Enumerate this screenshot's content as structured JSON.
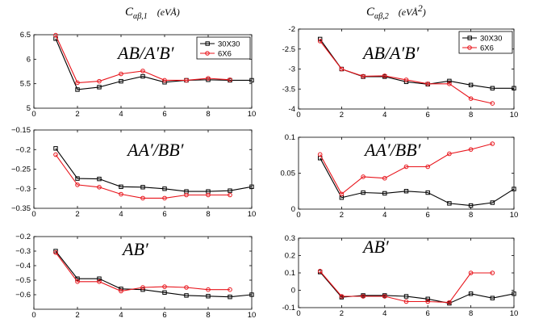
{
  "headers": {
    "left": "C",
    "left_sub": "αβ,1",
    "left_units": "(eVÅ)",
    "right": "C",
    "right_sub": "αβ,2",
    "right_units": "(eVÅ",
    "right_units_sup": "2",
    "right_units_close": ")"
  },
  "legend": {
    "entries": [
      "30X30",
      "6X6"
    ]
  },
  "colors": {
    "series_30x30": "#000000",
    "series_6x6": "#e8141b"
  },
  "chart_data": [
    {
      "id": "c1_abab",
      "type": "line",
      "annotation": "AB/A′B′",
      "xlim": [
        0,
        10
      ],
      "ylim": [
        5,
        6.5
      ],
      "xticks": [
        0,
        2,
        4,
        6,
        8,
        10
      ],
      "yticks": [
        5,
        5.5,
        6,
        6.5
      ],
      "ytick_labels": [
        "5",
        "5.5",
        "6",
        "6.5"
      ],
      "legend": true,
      "series": [
        {
          "name": "30X30",
          "x": [
            1,
            2,
            3,
            4,
            5,
            6,
            7,
            8,
            9,
            10
          ],
          "y": [
            6.42,
            5.38,
            5.43,
            5.55,
            5.65,
            5.53,
            5.57,
            5.58,
            5.57,
            5.57
          ]
        },
        {
          "name": "6X6",
          "x": [
            1,
            2,
            3,
            4,
            5,
            6,
            7,
            8,
            9
          ],
          "y": [
            6.49,
            5.52,
            5.55,
            5.7,
            5.76,
            5.57,
            5.57,
            5.61,
            5.58
          ]
        }
      ]
    },
    {
      "id": "c2_abab",
      "type": "line",
      "annotation": "AB/A′B′",
      "xlim": [
        0,
        10
      ],
      "ylim": [
        -4,
        -2
      ],
      "xticks": [
        0,
        2,
        4,
        6,
        8,
        10
      ],
      "yticks": [
        -4,
        -3.5,
        -3,
        -2.5,
        -2
      ],
      "ytick_labels": [
        "-4",
        "-3.5",
        "-3",
        "-2.5",
        "-2"
      ],
      "legend": true,
      "series": [
        {
          "name": "30X30",
          "x": [
            1,
            2,
            3,
            4,
            5,
            6,
            7,
            8,
            9,
            10
          ],
          "y": [
            -2.25,
            -3.0,
            -3.19,
            -3.19,
            -3.32,
            -3.38,
            -3.3,
            -3.4,
            -3.48,
            -3.48
          ]
        },
        {
          "name": "6X6",
          "x": [
            1,
            2,
            3,
            4,
            5,
            6,
            7,
            8,
            9
          ],
          "y": [
            -2.3,
            -3.0,
            -3.18,
            -3.17,
            -3.27,
            -3.37,
            -3.37,
            -3.74,
            -3.86
          ]
        }
      ]
    },
    {
      "id": "c1_aabb",
      "type": "line",
      "annotation": "AA′/BB′",
      "xlim": [
        0,
        10
      ],
      "ylim": [
        -0.35,
        -0.15
      ],
      "xticks": [
        0,
        2,
        4,
        6,
        8,
        10
      ],
      "yticks": [
        -0.35,
        -0.3,
        -0.25,
        -0.2,
        -0.15
      ],
      "ytick_labels": [
        "−0.35",
        "−0.3",
        "−0.25",
        "−0.2",
        "−0.15"
      ],
      "legend": false,
      "series": [
        {
          "name": "30X30",
          "x": [
            1,
            2,
            3,
            4,
            5,
            6,
            7,
            8,
            9,
            10
          ],
          "y": [
            -0.197,
            -0.274,
            -0.275,
            -0.295,
            -0.296,
            -0.3,
            -0.307,
            -0.307,
            -0.305,
            -0.295
          ]
        },
        {
          "name": "6X6",
          "x": [
            1,
            2,
            3,
            4,
            5,
            6,
            7,
            8,
            9
          ],
          "y": [
            -0.213,
            -0.29,
            -0.296,
            -0.314,
            -0.324,
            -0.324,
            -0.316,
            -0.316,
            -0.316
          ]
        }
      ]
    },
    {
      "id": "c2_aabb",
      "type": "line",
      "annotation": "AA′/BB′",
      "xlim": [
        0,
        10
      ],
      "ylim": [
        0,
        0.1
      ],
      "xticks": [
        0,
        2,
        4,
        6,
        8,
        10
      ],
      "yticks": [
        0,
        0.05,
        0.1
      ],
      "ytick_labels": [
        "0",
        "0.05",
        "0.1"
      ],
      "legend": false,
      "series": [
        {
          "name": "30X30",
          "x": [
            1,
            2,
            3,
            4,
            5,
            6,
            7,
            8,
            9,
            10
          ],
          "y": [
            0.071,
            0.016,
            0.023,
            0.022,
            0.025,
            0.023,
            0.008,
            0.005,
            0.009,
            0.028
          ]
        },
        {
          "name": "6X6",
          "x": [
            1,
            2,
            3,
            4,
            5,
            6,
            7,
            8,
            9
          ],
          "y": [
            0.076,
            0.021,
            0.045,
            0.043,
            0.059,
            0.059,
            0.077,
            0.083,
            0.091
          ]
        }
      ]
    },
    {
      "id": "c1_ab",
      "type": "line",
      "annotation": "AB′",
      "xlim": [
        0,
        10
      ],
      "ylim": [
        -0.7,
        -0.2
      ],
      "xticks": [
        0,
        2,
        4,
        6,
        8,
        10
      ],
      "yticks": [
        -0.6,
        -0.5,
        -0.4,
        -0.3,
        -0.2
      ],
      "ytick_labels": [
        "−0.6",
        "−0.5",
        "−0.4",
        "−0.3",
        "−0.2"
      ],
      "legend": false,
      "series": [
        {
          "name": "30X30",
          "x": [
            1,
            2,
            3,
            4,
            5,
            6,
            7,
            8,
            9,
            10
          ],
          "y": [
            -0.3,
            -0.49,
            -0.49,
            -0.56,
            -0.565,
            -0.585,
            -0.605,
            -0.61,
            -0.615,
            -0.6
          ]
        },
        {
          "name": "6X6",
          "x": [
            1,
            2,
            3,
            4,
            5,
            6,
            7,
            8,
            9
          ],
          "y": [
            -0.31,
            -0.51,
            -0.51,
            -0.575,
            -0.55,
            -0.545,
            -0.55,
            -0.565,
            -0.565
          ]
        }
      ]
    },
    {
      "id": "c2_ab",
      "type": "line",
      "annotation": "AB′",
      "xlim": [
        0,
        10
      ],
      "ylim": [
        -0.1,
        0.3
      ],
      "xticks": [
        0,
        2,
        4,
        6,
        8,
        10
      ],
      "yticks": [
        -0.1,
        0,
        0.1,
        0.2,
        0.3
      ],
      "ytick_labels": [
        "-0.1",
        "0",
        "0.1",
        "0.2",
        "0.3"
      ],
      "legend": false,
      "series": [
        {
          "name": "30X30",
          "x": [
            1,
            2,
            3,
            4,
            5,
            6,
            7,
            8,
            9,
            10
          ],
          "y": [
            0.105,
            -0.04,
            -0.03,
            -0.03,
            -0.035,
            -0.05,
            -0.075,
            -0.02,
            -0.045,
            -0.02
          ]
        },
        {
          "name": "6X6",
          "x": [
            1,
            2,
            3,
            4,
            5,
            6,
            7,
            8,
            9
          ],
          "y": [
            0.11,
            -0.035,
            -0.035,
            -0.035,
            -0.065,
            -0.065,
            -0.07,
            0.1,
            0.1
          ]
        }
      ]
    }
  ]
}
